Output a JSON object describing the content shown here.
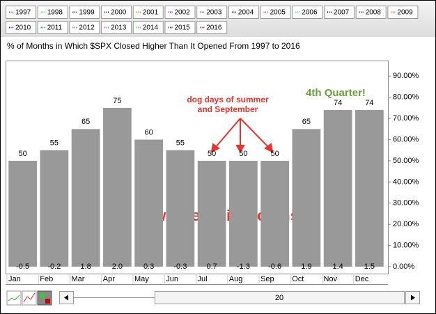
{
  "legend": [
    {
      "name": "1997",
      "color": "#9933cc"
    },
    {
      "name": "1998",
      "color": "#33cc33"
    },
    {
      "name": "1999",
      "color": "#000066"
    },
    {
      "name": "2000",
      "color": "#000033"
    },
    {
      "name": "2001",
      "color": "#ff6600"
    },
    {
      "name": "2002",
      "color": "#cc00cc"
    },
    {
      "name": "2003",
      "color": "#336666"
    },
    {
      "name": "2004",
      "color": "#003333"
    },
    {
      "name": "2005",
      "color": "#cc33cc"
    },
    {
      "name": "2006",
      "color": "#33cc66"
    },
    {
      "name": "2007",
      "color": "#000066"
    },
    {
      "name": "2008",
      "color": "#660000"
    },
    {
      "name": "2009",
      "color": "#ff6600"
    },
    {
      "name": "2010",
      "color": "#660099"
    },
    {
      "name": "2011",
      "color": "#006666"
    },
    {
      "name": "2012",
      "color": "#666666"
    },
    {
      "name": "2013",
      "color": "#cc33cc"
    },
    {
      "name": "2014",
      "color": "#33cc33"
    },
    {
      "name": "2015",
      "color": "#000066"
    },
    {
      "name": "2016",
      "color": "#cc0000"
    }
  ],
  "chart_data": {
    "type": "bar",
    "title": "% of Months in Which $SPX Closed Higher Than It Opened From 1997 to 2016",
    "categories": [
      "Jan",
      "Feb",
      "Mar",
      "Apr",
      "May",
      "Jun",
      "Jul",
      "Aug",
      "Sep",
      "Oct",
      "Nov",
      "Dec"
    ],
    "values": [
      50,
      55,
      65,
      75,
      60,
      55,
      50,
      50,
      50,
      65,
      74,
      74
    ],
    "color": "#999999",
    "average_changes": {
      "values": [
        -0.5,
        -0.2,
        1.8,
        2.0,
        0.3,
        -0.3,
        0.7,
        -1.3,
        -0.6,
        1.9,
        1.4,
        1.5
      ],
      "value_labels": [
        "-0.5",
        "-0.2",
        "1.8",
        "2.0",
        "0.3",
        "-0.3",
        "0.7",
        "-1.3",
        "-0.6",
        "1.9",
        "1.4",
        "1.5"
      ]
    },
    "ylim": [
      0,
      97
    ],
    "yticks": [
      {
        "value": 0,
        "label": "0.00%"
      },
      {
        "value": 10,
        "label": "10.00%"
      },
      {
        "value": 20,
        "label": "20.00%"
      },
      {
        "value": 30,
        "label": "30.00%"
      },
      {
        "value": 40,
        "label": "40.00%"
      },
      {
        "value": 50,
        "label": "50.00%"
      },
      {
        "value": 60,
        "label": "60.00%"
      },
      {
        "value": 70,
        "label": "70.00%"
      },
      {
        "value": 80,
        "label": "80.00%"
      },
      {
        "value": 90,
        "label": "90.00%"
      }
    ],
    "grid": false,
    "annotations": {
      "dog_days": [
        "dog days of summer",
        "and September"
      ],
      "fourth_quarter": "4th Quarter!",
      "weakest": "weakest six months"
    }
  },
  "controls": {
    "period": "20"
  }
}
